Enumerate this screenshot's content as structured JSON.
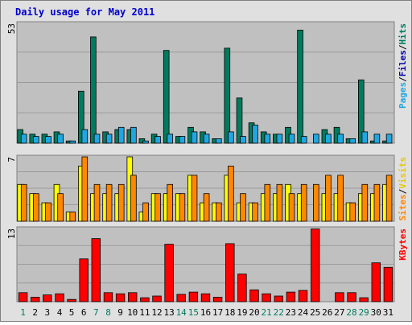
{
  "chart_data": {
    "type": "bar",
    "title": "Daily usage for May 2011",
    "days": [
      "1",
      "2",
      "3",
      "4",
      "5",
      "6",
      "7",
      "8",
      "9",
      "10",
      "11",
      "12",
      "13",
      "14",
      "15",
      "16",
      "17",
      "18",
      "19",
      "20",
      "21",
      "22",
      "23",
      "24",
      "25",
      "26",
      "27",
      "28",
      "29",
      "30",
      "31"
    ],
    "weekend_days": [
      "1",
      "7",
      "8",
      "14",
      "15",
      "21",
      "22",
      "28",
      "29"
    ],
    "panels": [
      {
        "id": "hits",
        "scale_label": "53",
        "ymax": 53,
        "legend": [
          "Pages",
          "/",
          "Files",
          "/",
          "Hits"
        ],
        "series": [
          {
            "name": "Hits",
            "color": "#007b5e",
            "values": [
              6,
              4,
              4,
              5,
              1,
              23,
              47,
              5,
              6,
              6,
              2,
              4,
              41,
              3,
              7,
              5,
              2,
              42,
              20,
              9,
              5,
              4,
              7,
              50,
              0,
              6,
              7,
              2,
              28,
              1,
              1
            ]
          },
          {
            "name": "Files",
            "color": "#20a7e1",
            "values": [
              4,
              3,
              3,
              4,
              1,
              6,
              4,
              4,
              7,
              7,
              1,
              3,
              4,
              3,
              5,
              4,
              2,
              5,
              3,
              8,
              4,
              4,
              4,
              3,
              4,
              4,
              4,
              2,
              5,
              4,
              4
            ]
          }
        ]
      },
      {
        "id": "visits",
        "scale_label": "7",
        "ymax": 7,
        "legend": [
          "Sites",
          "/",
          "Visits"
        ],
        "series": [
          {
            "name": "Visits",
            "color": "#ffff00",
            "values": [
              4,
              3,
              2,
              4,
              1,
              6,
              3,
              3,
              3,
              7,
              1,
              3,
              3,
              3,
              5,
              2,
              2,
              5,
              2,
              2,
              3,
              3,
              4,
              3,
              0,
              3,
              3,
              2,
              3,
              3,
              4
            ]
          },
          {
            "name": "Sites",
            "color": "#ff8800",
            "values": [
              4,
              3,
              2,
              3,
              1,
              7,
              4,
              4,
              4,
              5,
              2,
              3,
              4,
              3,
              5,
              3,
              2,
              6,
              3,
              2,
              4,
              4,
              3,
              4,
              4,
              5,
              5,
              2,
              4,
              4,
              5
            ]
          }
        ]
      },
      {
        "id": "kbytes",
        "scale_label": "13",
        "ymax": 13,
        "legend": [
          "KBytes"
        ],
        "series": [
          {
            "name": "KBytes",
            "color": "#ff0000",
            "values": [
              1.6,
              0.8,
              1.2,
              1.4,
              0.4,
              7.6,
              11.2,
              1.6,
              1.4,
              1.6,
              0.7,
              1.0,
              10.2,
              1.3,
              1.7,
              1.4,
              0.8,
              10.3,
              4.9,
              2.1,
              1.4,
              1.0,
              1.7,
              2.0,
              12.9,
              0,
              1.6,
              1.6,
              0.7,
              6.9,
              6.1
            ]
          }
        ]
      }
    ]
  },
  "colors": {
    "title": "#0000cc",
    "frame_bg": "#e0e0e0",
    "plot_bg": "#c0c0c0",
    "grid": "#9a9a9a",
    "label_pages": "#20a7e1",
    "label_files": "#0000aa",
    "label_hits": "#007b5e",
    "label_sites": "#ff8800",
    "label_visits": "#e6c800",
    "label_kbytes": "#ff0000",
    "weekday": "#000000",
    "weekend": "#007b5e"
  }
}
